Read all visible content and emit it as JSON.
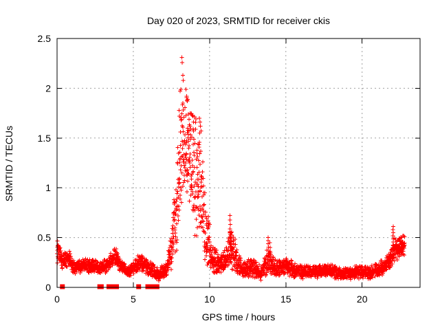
{
  "page": {
    "background": "#ffffff"
  },
  "chart_data": {
    "type": "scatter",
    "title": "Day 020 of 2023, SRMTID for receiver ckis",
    "xlabel": "GPS time / hours",
    "ylabel": "SRMTID / TECUs",
    "xlim": [
      0,
      23.8
    ],
    "ylim": [
      0,
      2.5
    ],
    "xticks": [
      0,
      5,
      10,
      15,
      20
    ],
    "yticks": [
      0,
      0.5,
      1,
      1.5,
      2,
      2.5
    ],
    "grid": true,
    "grid_color": "#a0a0a0",
    "border_color": "#000000",
    "marker": {
      "shape": "plus",
      "color": "#ff0000",
      "size": 7
    },
    "points_per_hour": 120,
    "envelope_segments": [
      [
        0.0,
        0.15,
        0.22,
        0.47
      ],
      [
        0.15,
        0.5,
        0.18,
        0.34
      ],
      [
        0.5,
        0.95,
        0.2,
        0.4
      ],
      [
        0.95,
        1.4,
        0.12,
        0.26
      ],
      [
        1.4,
        2.1,
        0.15,
        0.3
      ],
      [
        2.1,
        2.6,
        0.13,
        0.28
      ],
      [
        2.6,
        3.1,
        0.12,
        0.26
      ],
      [
        3.1,
        3.6,
        0.15,
        0.3
      ],
      [
        3.6,
        4.0,
        0.2,
        0.42
      ],
      [
        4.0,
        4.5,
        0.13,
        0.26
      ],
      [
        4.5,
        5.1,
        0.1,
        0.22
      ],
      [
        5.1,
        5.75,
        0.16,
        0.35
      ],
      [
        5.75,
        6.35,
        0.1,
        0.28
      ],
      [
        6.35,
        7.0,
        0.05,
        0.18
      ],
      [
        7.0,
        7.35,
        0.1,
        0.28
      ],
      [
        7.35,
        7.65,
        0.15,
        0.55
      ],
      [
        7.65,
        7.95,
        0.3,
        1.15
      ],
      [
        7.95,
        8.15,
        0.55,
        1.8
      ],
      [
        8.15,
        8.45,
        0.8,
        2.05
      ],
      [
        8.45,
        8.8,
        0.65,
        1.95
      ],
      [
        8.8,
        9.2,
        0.5,
        1.75
      ],
      [
        9.2,
        9.6,
        0.35,
        1.55
      ],
      [
        9.6,
        9.95,
        0.18,
        0.85
      ],
      [
        9.95,
        10.4,
        0.12,
        0.5
      ],
      [
        10.4,
        10.9,
        0.1,
        0.3
      ],
      [
        10.9,
        11.2,
        0.12,
        0.4
      ],
      [
        11.2,
        11.5,
        0.15,
        0.62
      ],
      [
        11.5,
        11.85,
        0.12,
        0.5
      ],
      [
        11.85,
        12.4,
        0.08,
        0.25
      ],
      [
        12.4,
        13.0,
        0.1,
        0.3
      ],
      [
        13.0,
        13.7,
        0.07,
        0.22
      ],
      [
        13.7,
        14.0,
        0.12,
        0.42
      ],
      [
        14.0,
        14.7,
        0.1,
        0.28
      ],
      [
        14.7,
        15.4,
        0.1,
        0.3
      ],
      [
        15.4,
        16.2,
        0.08,
        0.24
      ],
      [
        16.2,
        17.2,
        0.08,
        0.22
      ],
      [
        17.2,
        18.2,
        0.1,
        0.24
      ],
      [
        18.2,
        19.2,
        0.07,
        0.2
      ],
      [
        19.2,
        20.2,
        0.08,
        0.22
      ],
      [
        20.2,
        21.0,
        0.08,
        0.22
      ],
      [
        21.0,
        21.7,
        0.12,
        0.28
      ],
      [
        21.7,
        22.0,
        0.18,
        0.38
      ],
      [
        22.0,
        22.3,
        0.25,
        0.5
      ],
      [
        22.3,
        22.8,
        0.3,
        0.52
      ]
    ],
    "outlier_points": [
      [
        8.18,
        2.31
      ],
      [
        8.2,
        2.26
      ],
      [
        8.24,
        2.13
      ],
      [
        8.27,
        2.08
      ],
      [
        8.0,
        1.78
      ],
      [
        8.03,
        1.72
      ],
      [
        8.07,
        1.97
      ],
      [
        8.12,
        1.99
      ],
      [
        8.45,
        1.99
      ],
      [
        8.5,
        1.92
      ],
      [
        8.53,
        1.88
      ],
      [
        8.55,
        1.87
      ],
      [
        8.57,
        1.89
      ],
      [
        8.62,
        1.74
      ],
      [
        8.66,
        1.69
      ],
      [
        8.72,
        1.62
      ],
      [
        8.9,
        1.72
      ],
      [
        8.95,
        1.66
      ],
      [
        9.25,
        1.44
      ],
      [
        9.3,
        1.41
      ],
      [
        9.33,
        1.7
      ],
      [
        9.37,
        1.66
      ],
      [
        9.4,
        1.62
      ],
      [
        9.44,
        1.57
      ]
    ],
    "spike_columns": [
      {
        "t": 11.35,
        "bottom": 0.28,
        "top": 0.72,
        "n": 11
      },
      {
        "t": 11.42,
        "bottom": 0.25,
        "top": 0.55,
        "n": 6
      },
      {
        "t": 13.85,
        "bottom": 0.28,
        "top": 0.5,
        "n": 8
      },
      {
        "t": 13.95,
        "bottom": 0.3,
        "top": 0.45,
        "n": 4
      },
      {
        "t": 22.03,
        "bottom": 0.3,
        "top": 0.61,
        "n": 11
      },
      {
        "t": 22.6,
        "bottom": 0.33,
        "top": 0.5,
        "n": 6
      }
    ],
    "zero_value_hours": [
      0.35,
      2.8,
      2.9,
      3.4,
      3.5,
      3.6,
      3.9,
      5.35,
      5.95,
      6.25,
      6.4,
      6.55
    ]
  }
}
